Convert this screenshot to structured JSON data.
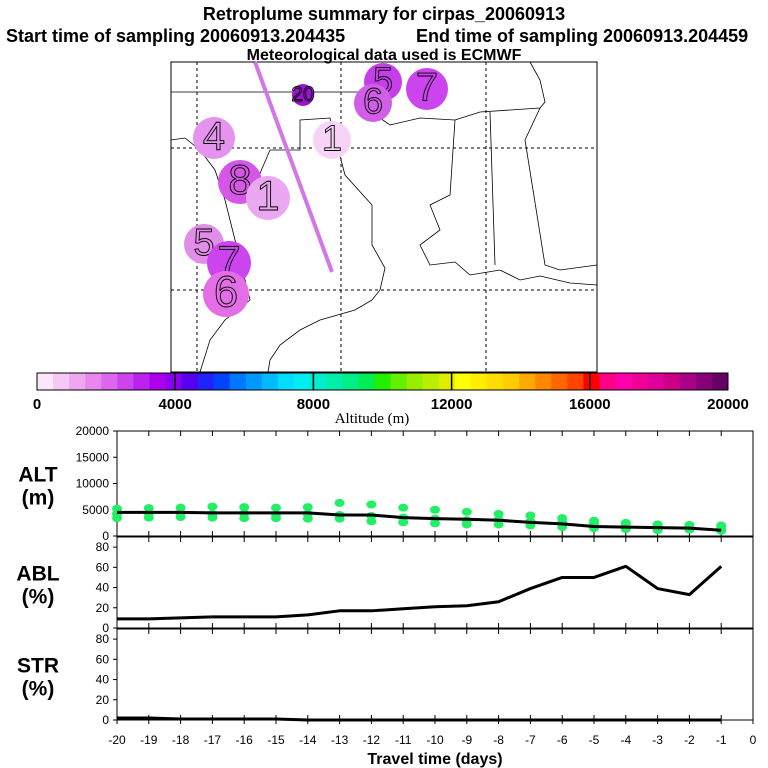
{
  "header": {
    "title": "Retroplume summary for cirpas_20060913",
    "start_label": "Start time of sampling 20060913.204435",
    "end_label": "End time of sampling 20060913.204459",
    "met_label": "Meteorological data used is ECMWF"
  },
  "colorbar": {
    "label": "Altitude (m)",
    "ticks": [
      "0",
      "4000",
      "8000",
      "12000",
      "16000",
      "20000"
    ],
    "colors": [
      "#fbe6fb",
      "#f5c8f5",
      "#efa8ef",
      "#e888ee",
      "#dd66ee",
      "#cc44ee",
      "#bb22ee",
      "#aa00ee",
      "#8800ee",
      "#5500ee",
      "#2222ff",
      "#0044ff",
      "#0077ff",
      "#0099ff",
      "#00bbff",
      "#00ddff",
      "#00eeee",
      "#00eecc",
      "#00eeaa",
      "#00ee88",
      "#00ee55",
      "#22ee00",
      "#66ee00",
      "#99ee00",
      "#bbee00",
      "#ddee00",
      "#ffff00",
      "#ffee00",
      "#ffdd00",
      "#ffcc00",
      "#ffaa00",
      "#ff8800",
      "#ff6600",
      "#ff4400",
      "#ff0000",
      "#ff0088",
      "#ff00aa",
      "#ee0099",
      "#dd0099",
      "#cc0088",
      "#aa0088",
      "#880077",
      "#660066"
    ]
  },
  "map": {
    "markers": [
      {
        "label": "20",
        "color": "#9a14d0"
      },
      {
        "label": "5",
        "color": "#c63ee8"
      },
      {
        "label": "6",
        "color": "#d05ee6"
      },
      {
        "label": "7",
        "color": "#cc44ee"
      },
      {
        "label": "4",
        "color": "#e594ee"
      },
      {
        "label": "8",
        "color": "#d457e6"
      },
      {
        "label": "1",
        "color": "#e9a8f0"
      },
      {
        "label": "1",
        "color": "#f7d4f6"
      },
      {
        "label": "5",
        "color": "#e08ee8"
      },
      {
        "label": "7",
        "color": "#cc44ee"
      },
      {
        "label": "6",
        "color": "#e46ee6"
      }
    ]
  },
  "chart_data": [
    {
      "type": "scatter",
      "panel_label": "ALT\n(m)",
      "label_line1": "ALT",
      "label_line2": "(m)",
      "ylim": [
        0,
        20000
      ],
      "yticks": [
        "20000",
        "15000",
        "10000",
        "5000",
        "0"
      ],
      "x": [
        -20,
        -19,
        -18,
        -17,
        -16,
        -15,
        -14,
        -13,
        -12,
        -11,
        -10,
        -9,
        -8,
        -7,
        -6,
        -5,
        -4,
        -3,
        -2,
        -1
      ],
      "scatter_series": [
        {
          "name": "particles-high",
          "values": [
            5200,
            5300,
            5400,
            5600,
            5500,
            5400,
            5500,
            6300,
            6000,
            5400,
            5000,
            4600,
            4200,
            3900,
            3400,
            2900,
            2500,
            2200,
            2100,
            2000
          ]
        },
        {
          "name": "particles-low",
          "values": [
            3400,
            3500,
            3600,
            3500,
            3400,
            3400,
            3300,
            3300,
            2800,
            2600,
            2400,
            2200,
            2200,
            2000,
            1700,
            1500,
            1300,
            1100,
            1200,
            1000
          ]
        },
        {
          "name": "particles-mid",
          "values": [
            4200,
            4300,
            4400,
            4200,
            4300,
            4100,
            4200,
            4000,
            3800,
            3500,
            3300,
            3000,
            3100,
            2800,
            2600,
            2300,
            2000,
            1800,
            1600,
            1400
          ]
        }
      ],
      "line": {
        "name": "mean-altitude",
        "values": [
          4500,
          4500,
          4500,
          4400,
          4400,
          4400,
          4400,
          4000,
          4000,
          3500,
          3300,
          3200,
          3000,
          2600,
          2300,
          1800,
          1700,
          1600,
          1500,
          1100
        ]
      },
      "point_color": "#22ee66"
    },
    {
      "type": "line",
      "panel_label": "ABL\n(%)",
      "label_line1": "ABL",
      "label_line2": "(%)",
      "ylim": [
        0,
        90
      ],
      "yticks": [
        "80",
        "60",
        "40",
        "20",
        "0"
      ],
      "x": [
        -20,
        -19,
        -18,
        -17,
        -16,
        -15,
        -14,
        -13,
        -12,
        -11,
        -10,
        -9,
        -8,
        -7,
        -6,
        -5,
        -4,
        -3,
        -2,
        -1
      ],
      "values": [
        9,
        9,
        10,
        11,
        11,
        11,
        13,
        17,
        17,
        19,
        21,
        22,
        26,
        39,
        50,
        50,
        61,
        39,
        33,
        61
      ]
    },
    {
      "type": "line",
      "panel_label": "STR\n(%)",
      "label_line1": "STR",
      "label_line2": "(%)",
      "ylim": [
        0,
        90
      ],
      "yticks": [
        "80",
        "60",
        "40",
        "20",
        "0"
      ],
      "x": [
        -20,
        -19,
        -18,
        -17,
        -16,
        -15,
        -14,
        -13,
        -12,
        -11,
        -10,
        -9,
        -8,
        -7,
        -6,
        -5,
        -4,
        -3,
        -2,
        -1
      ],
      "values": [
        2,
        2,
        1,
        1,
        1,
        1,
        0,
        0,
        0,
        0,
        0,
        0,
        0,
        0,
        0,
        0,
        0,
        0,
        0,
        0
      ]
    }
  ],
  "xaxis": {
    "ticks": [
      "-20",
      "-19",
      "-18",
      "-17",
      "-16",
      "-15",
      "-14",
      "-13",
      "-12",
      "-11",
      "-10",
      "-9",
      "-8",
      "-7",
      "-6",
      "-5",
      "-4",
      "-3",
      "-2",
      "-1",
      "0"
    ],
    "xlabel": "Travel time (days)"
  }
}
